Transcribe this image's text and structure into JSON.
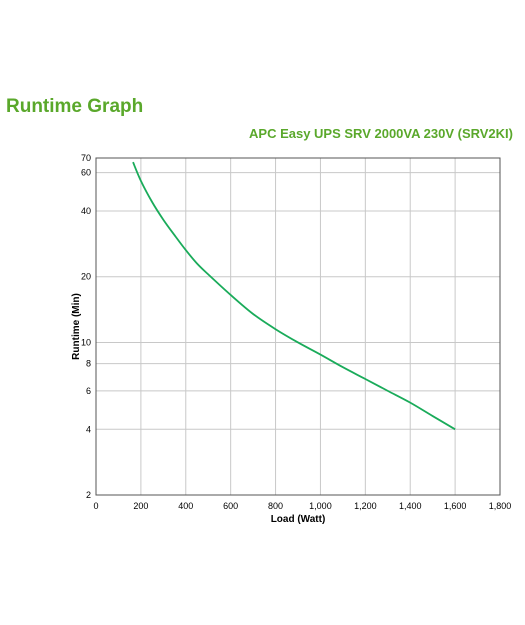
{
  "page": {
    "title": "Runtime Graph"
  },
  "colors": {
    "title": "#5aa82b",
    "line": "#1aab5a",
    "grid": "#c8c8c8",
    "frame": "#555555"
  },
  "chart_data": {
    "type": "line",
    "title": "APC Easy UPS SRV 2000VA 230V (SRV2KI)",
    "xlabel": "Load (Watt)",
    "ylabel": "Runtime (Min)",
    "xlim": [
      0,
      1800
    ],
    "ylim": [
      2,
      70
    ],
    "yscale": "log",
    "grid": true,
    "x_ticks": [
      0,
      200,
      400,
      600,
      800,
      1000,
      1200,
      1400,
      1600,
      1800
    ],
    "x_tick_labels": [
      "0",
      "200",
      "400",
      "600",
      "800",
      "1,000",
      "1,200",
      "1,400",
      "1,600",
      "1,800"
    ],
    "y_ticks": [
      2,
      4,
      6,
      8,
      10,
      20,
      40,
      60,
      70
    ],
    "y_tick_labels": [
      "2",
      "4",
      "6",
      "8",
      "10",
      "20",
      "40",
      "60",
      "70"
    ],
    "series": [
      {
        "x": [
          165,
          200,
          250,
          300,
          350,
          400,
          450,
          500,
          600,
          700,
          800,
          900,
          1000,
          1100,
          1200,
          1300,
          1400,
          1500,
          1600
        ],
        "y": [
          67,
          55,
          44,
          36.5,
          31,
          26.5,
          23,
          20.5,
          16.5,
          13.5,
          11.5,
          10,
          8.8,
          7.7,
          6.8,
          6,
          5.3,
          4.6,
          4
        ]
      }
    ]
  }
}
